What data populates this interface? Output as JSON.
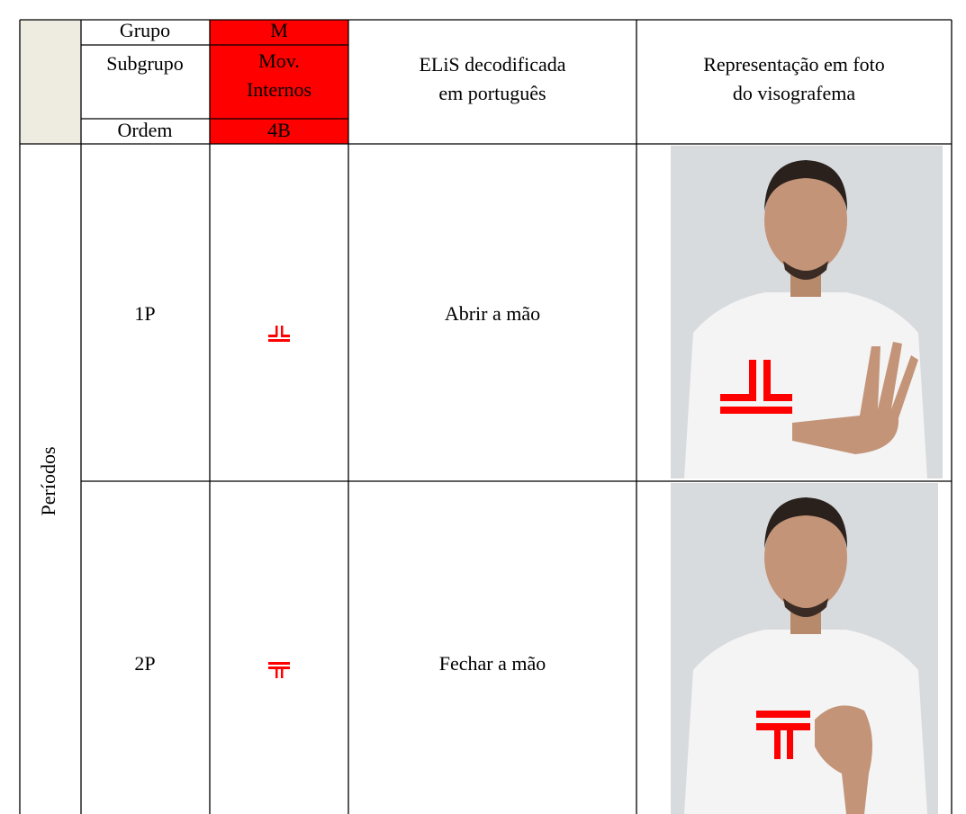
{
  "header": {
    "grupo_label": "Grupo",
    "grupo_value": "M",
    "subgrupo_label": "Subgrupo",
    "subgrupo_value_1": "Mov.",
    "subgrupo_value_2": "Internos",
    "ordem_label": "Ordem",
    "ordem_value": "4B",
    "col3_line1": "ELiS decodificada",
    "col3_line2": "em português",
    "col4_line1": "Representação em foto",
    "col4_line2": "do visografema"
  },
  "side_label": "Períodos",
  "rows": [
    {
      "period": "1P",
      "meaning": "Abrir a mão"
    },
    {
      "period": "2P",
      "meaning": "Fechar a mão"
    }
  ]
}
